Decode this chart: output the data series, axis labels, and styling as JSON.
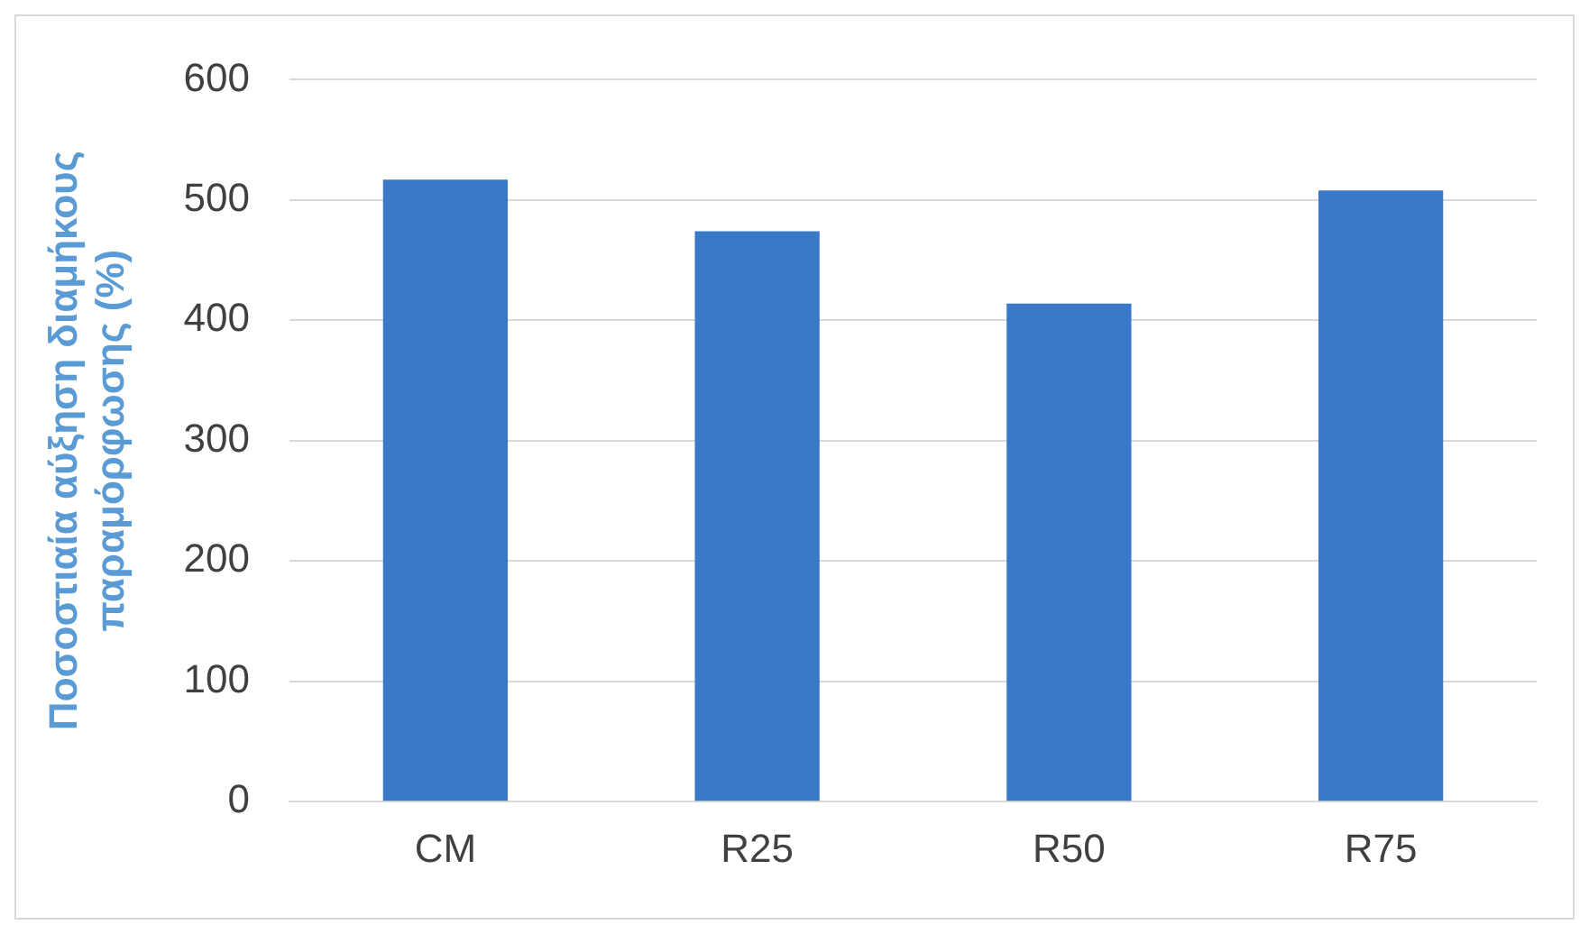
{
  "chart_data": {
    "type": "bar",
    "ylabel": "Ποσοστιαία αύξηση διαμήκους παραμόρφωσης (%)",
    "categories": [
      "CM",
      "R25",
      "R50",
      "R75"
    ],
    "values": [
      517,
      474,
      414,
      508
    ],
    "color": "#3a78c8",
    "ylim": [
      0,
      600
    ],
    "yticks": [
      0,
      100,
      200,
      300,
      400,
      500,
      600
    ],
    "grid": "y"
  }
}
